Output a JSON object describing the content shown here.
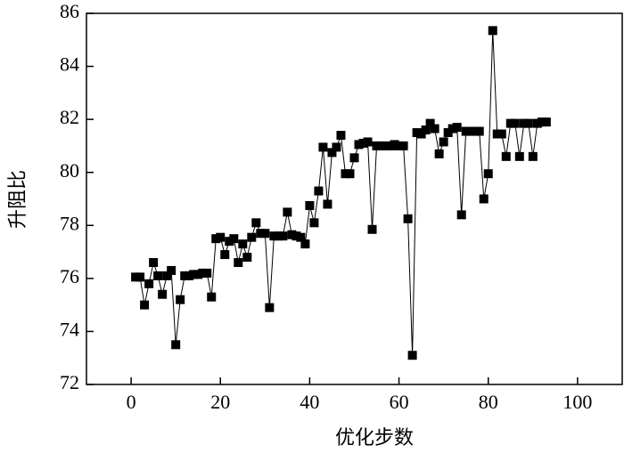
{
  "chart_data": {
    "type": "line",
    "xlabel": "优化步数",
    "ylabel": "升阻比",
    "x": [
      1,
      2,
      3,
      4,
      5,
      6,
      7,
      8,
      9,
      10,
      11,
      12,
      13,
      14,
      15,
      16,
      17,
      18,
      19,
      20,
      21,
      22,
      23,
      24,
      25,
      26,
      27,
      28,
      29,
      30,
      31,
      32,
      33,
      34,
      35,
      36,
      37,
      38,
      39,
      40,
      41,
      42,
      43,
      44,
      45,
      46,
      47,
      48,
      49,
      50,
      51,
      52,
      53,
      54,
      55,
      56,
      57,
      58,
      59,
      60,
      61,
      62,
      63,
      64,
      65,
      66,
      67,
      68,
      69,
      70,
      71,
      72,
      73,
      74,
      75,
      76,
      77,
      78,
      79,
      80,
      81,
      82,
      83,
      84,
      85,
      86,
      87,
      88,
      89,
      90,
      91,
      92,
      93
    ],
    "series": [
      {
        "color": "#000000",
        "values": [
          76.05,
          76.05,
          75.0,
          75.8,
          76.6,
          76.1,
          75.4,
          76.1,
          76.3,
          73.5,
          75.2,
          76.1,
          76.1,
          76.15,
          76.15,
          76.2,
          76.2,
          75.3,
          77.5,
          77.55,
          76.9,
          77.4,
          77.5,
          76.6,
          77.3,
          76.8,
          77.55,
          78.1,
          77.7,
          77.7,
          74.9,
          77.6,
          77.6,
          77.6,
          78.5,
          77.65,
          77.6,
          77.55,
          77.3,
          78.75,
          78.1,
          79.3,
          80.95,
          78.8,
          80.75,
          80.95,
          81.4,
          79.95,
          79.95,
          80.55,
          81.05,
          81.1,
          81.15,
          77.85,
          81.0,
          81.0,
          81.0,
          81.0,
          81.05,
          81.0,
          81.0,
          78.25,
          73.1,
          81.5,
          81.45,
          81.6,
          81.85,
          81.65,
          80.7,
          81.15,
          81.5,
          81.65,
          81.7,
          78.4,
          81.55,
          81.55,
          81.55,
          81.55,
          79.0,
          79.95,
          85.35,
          81.45,
          81.45,
          80.6,
          81.85,
          81.85,
          80.6,
          81.85,
          81.85,
          80.6,
          81.85,
          81.9,
          81.9
        ]
      }
    ],
    "xlim": [
      -10,
      110
    ],
    "xticks": [
      0,
      20,
      40,
      60,
      80,
      100
    ],
    "ylim": [
      72,
      86
    ],
    "yticks": [
      72,
      74,
      76,
      78,
      80,
      82,
      84,
      86
    ]
  }
}
